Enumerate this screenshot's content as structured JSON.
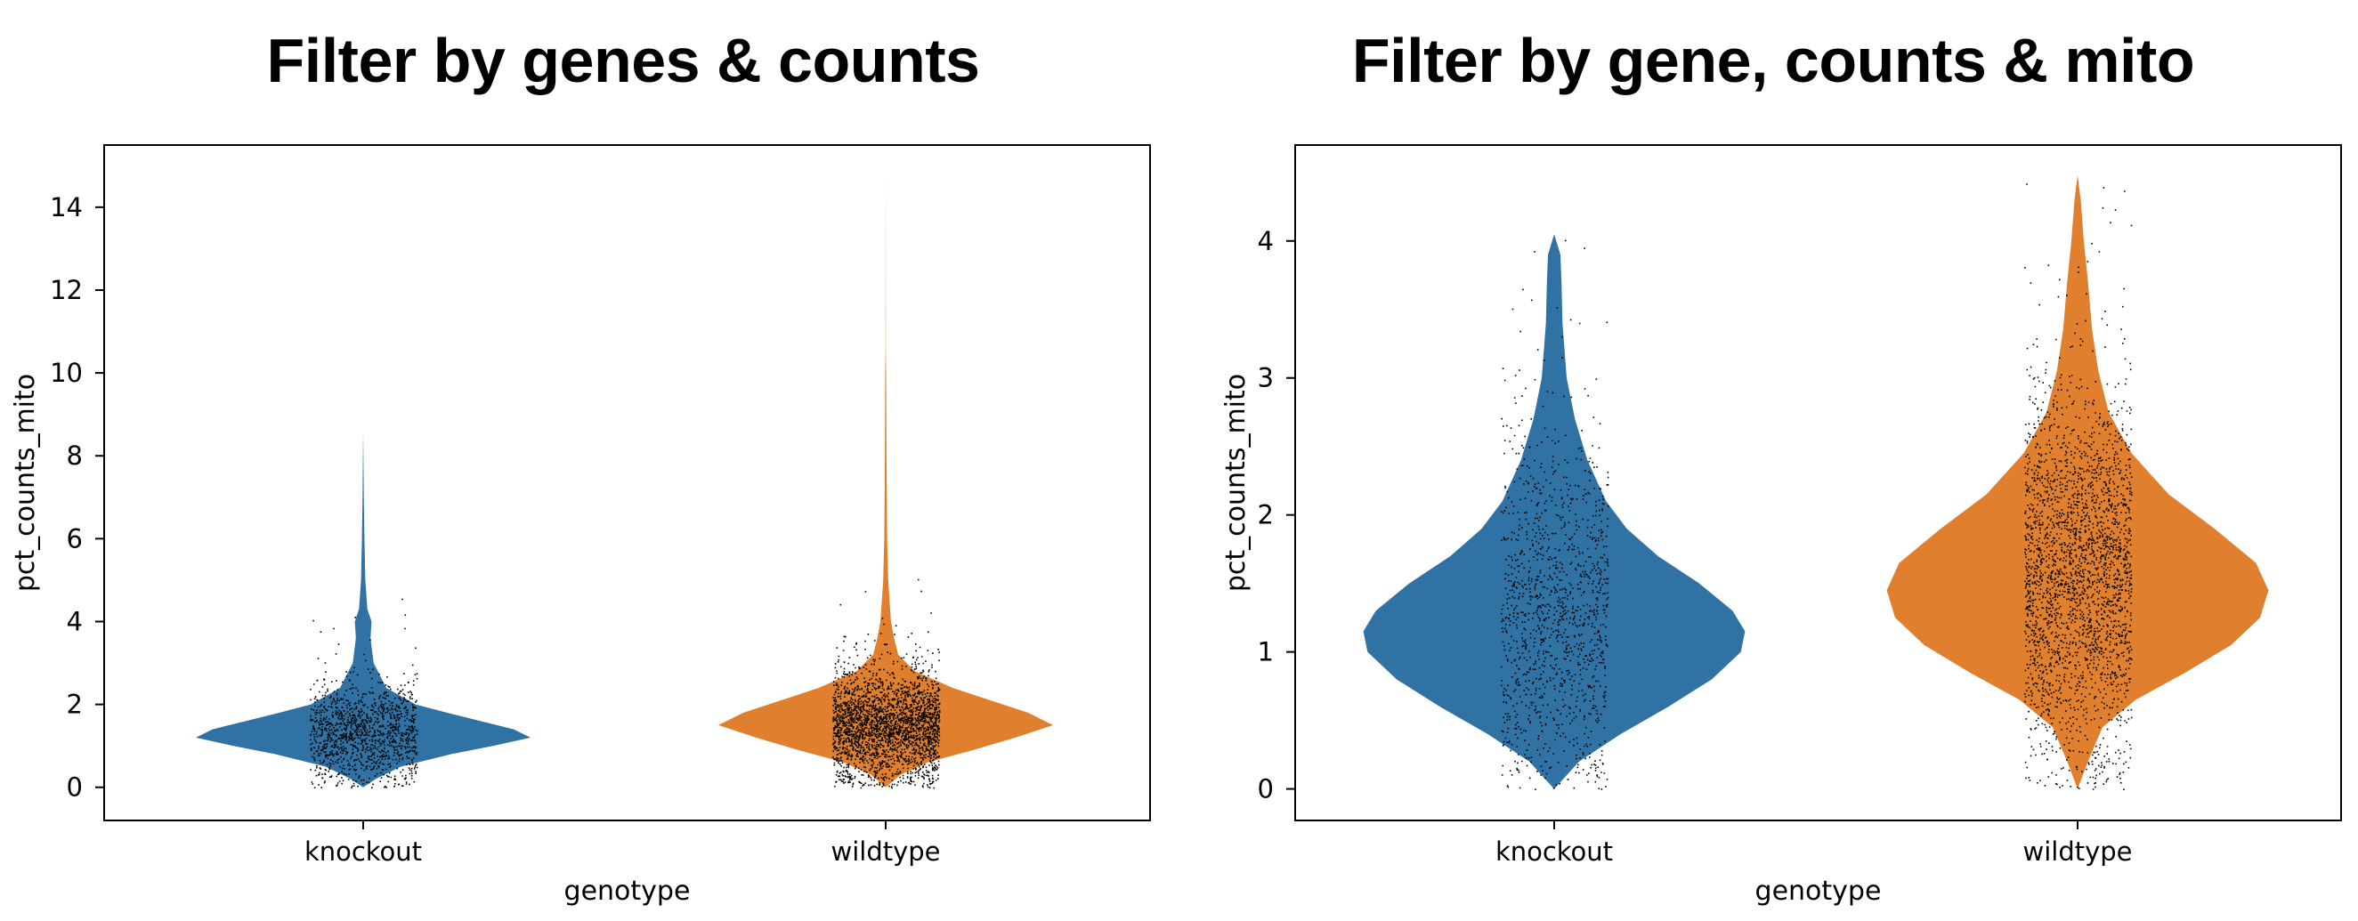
{
  "panels": {
    "left_title": "Filter by genes & counts",
    "right_title": "Filter by gene, counts & mito"
  },
  "colors": {
    "knockout": "#2f72a3",
    "wildtype": "#e0802e",
    "dots": "#000000",
    "axis": "#000000"
  },
  "chart_data": [
    {
      "type": "violin",
      "title": "Filter by genes & counts",
      "xlabel": "genotype",
      "ylabel": "pct_counts_mito",
      "categories": [
        "knockout",
        "wildtype"
      ],
      "ylim": [
        -0.8,
        15.5
      ],
      "yticks": [
        0,
        2,
        4,
        6,
        8,
        10,
        12,
        14
      ],
      "series": [
        {
          "name": "knockout",
          "color": "#2f72a3",
          "profile": [
            [
              0.0,
              0.0
            ],
            [
              0.2,
              0.06
            ],
            [
              0.5,
              0.18
            ],
            [
              0.8,
              0.42
            ],
            [
              1.0,
              0.62
            ],
            [
              1.2,
              0.8
            ],
            [
              1.4,
              0.72
            ],
            [
              1.6,
              0.56
            ],
            [
              1.8,
              0.4
            ],
            [
              2.0,
              0.25
            ],
            [
              2.4,
              0.11
            ],
            [
              3.0,
              0.05
            ],
            [
              3.6,
              0.035
            ],
            [
              4.0,
              0.04
            ],
            [
              4.3,
              0.02
            ],
            [
              5.0,
              0.01
            ],
            [
              6.0,
              0.006
            ],
            [
              7.0,
              0.003
            ],
            [
              8.6,
              0.0
            ]
          ],
          "jitter_dots": {
            "count": 1300,
            "median": 1.3,
            "spread": 0.6,
            "max": 8.6
          }
        },
        {
          "name": "wildtype",
          "color": "#e0802e",
          "profile": [
            [
              0.0,
              0.0
            ],
            [
              0.3,
              0.07
            ],
            [
              0.6,
              0.2
            ],
            [
              0.9,
              0.42
            ],
            [
              1.2,
              0.62
            ],
            [
              1.5,
              0.8
            ],
            [
              1.8,
              0.68
            ],
            [
              2.1,
              0.5
            ],
            [
              2.4,
              0.32
            ],
            [
              2.8,
              0.14
            ],
            [
              3.2,
              0.06
            ],
            [
              3.6,
              0.04
            ],
            [
              4.0,
              0.025
            ],
            [
              5.0,
              0.012
            ],
            [
              6.0,
              0.007
            ],
            [
              8.0,
              0.004
            ],
            [
              10.0,
              0.002
            ],
            [
              10.5,
              0.001
            ],
            [
              15.0,
              0.0
            ]
          ],
          "jitter_dots": {
            "count": 2700,
            "median": 1.5,
            "spread": 0.65,
            "max": 14.8
          }
        }
      ]
    },
    {
      "type": "violin",
      "title": "Filter by gene, counts & mito",
      "xlabel": "genotype",
      "ylabel": "pct_counts_mito",
      "categories": [
        "knockout",
        "wildtype"
      ],
      "ylim": [
        -0.23,
        4.7
      ],
      "yticks": [
        0,
        1,
        2,
        3,
        4
      ],
      "series": [
        {
          "name": "knockout",
          "color": "#2f72a3",
          "profile": [
            [
              0.0,
              0.0
            ],
            [
              0.2,
              0.12
            ],
            [
              0.4,
              0.32
            ],
            [
              0.6,
              0.55
            ],
            [
              0.8,
              0.76
            ],
            [
              1.0,
              0.9
            ],
            [
              1.15,
              0.92
            ],
            [
              1.3,
              0.86
            ],
            [
              1.5,
              0.7
            ],
            [
              1.7,
              0.5
            ],
            [
              1.9,
              0.35
            ],
            [
              2.1,
              0.25
            ],
            [
              2.4,
              0.16
            ],
            [
              2.7,
              0.1
            ],
            [
              3.0,
              0.06
            ],
            [
              3.4,
              0.04
            ],
            [
              3.7,
              0.035
            ],
            [
              3.9,
              0.03
            ],
            [
              4.05,
              0.0
            ]
          ],
          "jitter_dots": {
            "count": 1300,
            "median": 1.3,
            "spread": 0.65,
            "max": 4.05
          }
        },
        {
          "name": "wildtype",
          "color": "#e0802e",
          "profile": [
            [
              0.0,
              0.0
            ],
            [
              0.2,
              0.05
            ],
            [
              0.45,
              0.12
            ],
            [
              0.65,
              0.28
            ],
            [
              0.85,
              0.52
            ],
            [
              1.05,
              0.74
            ],
            [
              1.25,
              0.88
            ],
            [
              1.45,
              0.92
            ],
            [
              1.65,
              0.86
            ],
            [
              1.9,
              0.66
            ],
            [
              2.15,
              0.44
            ],
            [
              2.45,
              0.26
            ],
            [
              2.75,
              0.15
            ],
            [
              3.05,
              0.1
            ],
            [
              3.35,
              0.07
            ],
            [
              3.7,
              0.05
            ],
            [
              4.0,
              0.03
            ],
            [
              4.3,
              0.015
            ],
            [
              4.48,
              0.0
            ]
          ],
          "jitter_dots": {
            "count": 2700,
            "median": 1.6,
            "spread": 0.65,
            "max": 4.48
          }
        }
      ]
    }
  ]
}
